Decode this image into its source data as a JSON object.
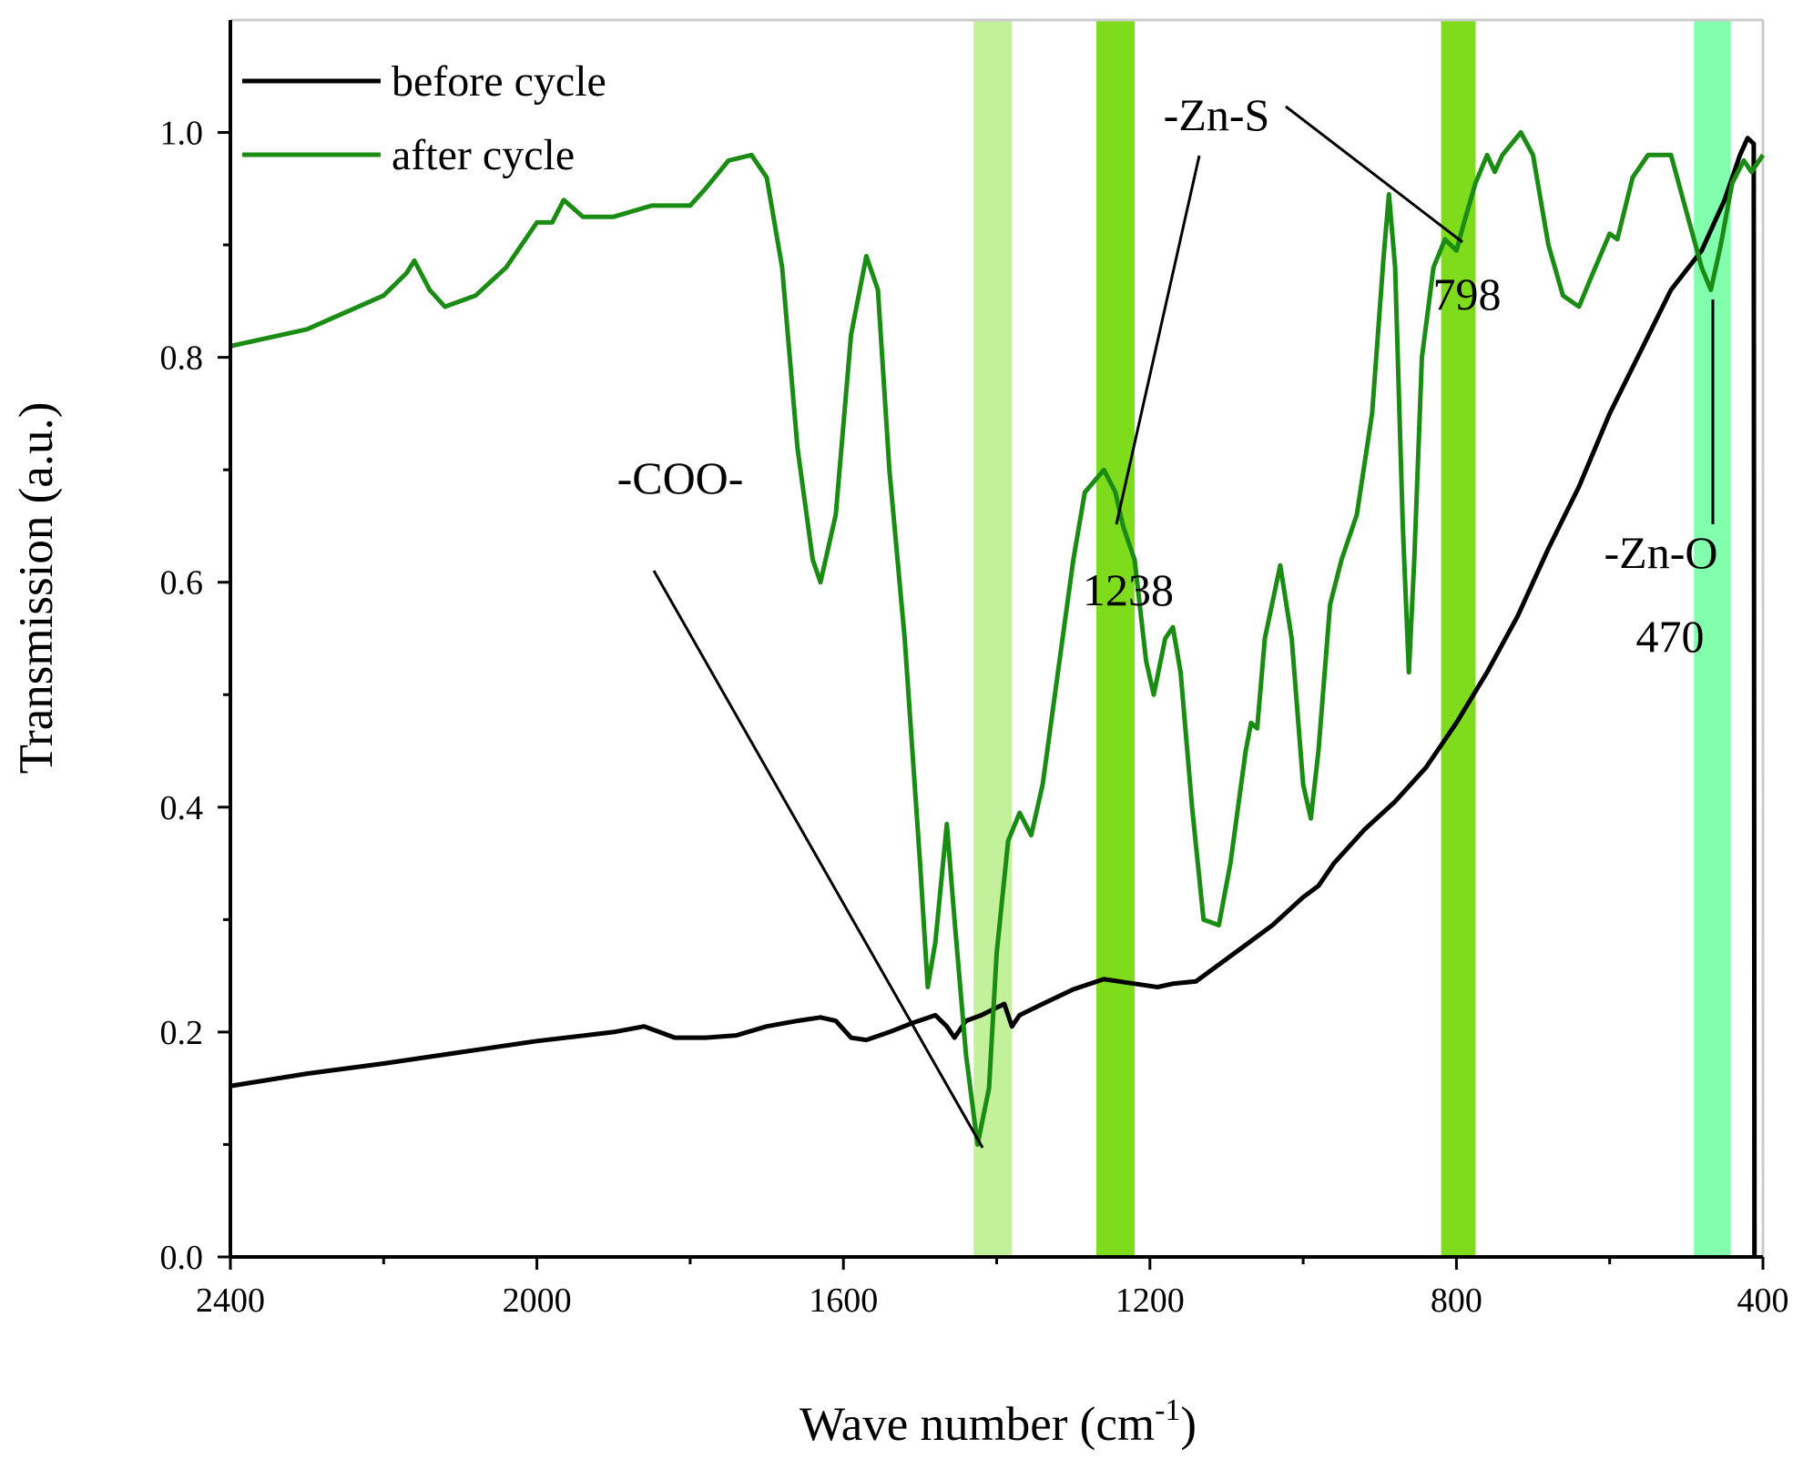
{
  "chart_data": {
    "type": "line",
    "xlabel": {
      "text": "Wave number (cm",
      "sup": "-1",
      "tail": ")"
    },
    "ylabel": "Transmission (a.u.)",
    "xlim": [
      2400,
      400
    ],
    "ylim": [
      0,
      1.1
    ],
    "xticks": [
      2400,
      2000,
      1600,
      1200,
      800,
      400
    ],
    "xminorticks": [
      2200,
      1800,
      1400,
      1000,
      600
    ],
    "yticks": [
      {
        "value": 0,
        "label": "0.0"
      },
      0.2,
      0.4,
      0.6,
      0.8,
      {
        "value": 1,
        "label": "1.0"
      }
    ],
    "yminorticks": [
      0.1,
      0.3,
      0.5,
      0.7,
      0.9
    ],
    "legend": "upper left",
    "bands": [
      {
        "from": 1430,
        "to": 1380,
        "color": "#c3f09a"
      },
      {
        "from": 1270,
        "to": 1220,
        "color": "#7fdc1c"
      },
      {
        "from": 820,
        "to": 775,
        "color": "#7fdc1c"
      },
      {
        "from": 490,
        "to": 442,
        "color": "#82ffad"
      }
    ],
    "annotations": [
      "-COO-",
      "-Zn-S",
      "1238",
      "798",
      "-Zn-O",
      "470"
    ],
    "series": [
      {
        "name": "before cycle",
        "color": "#000000",
        "x": [
          2400,
          2300,
          2200,
          2100,
          2000,
          1900,
          1860,
          1840,
          1820,
          1780,
          1740,
          1700,
          1660,
          1630,
          1610,
          1590,
          1570,
          1540,
          1510,
          1480,
          1465,
          1455,
          1440,
          1420,
          1390,
          1380,
          1370,
          1340,
          1300,
          1260,
          1220,
          1190,
          1170,
          1140,
          1120,
          1080,
          1040,
          1000,
          980,
          960,
          920,
          880,
          840,
          800,
          760,
          720,
          680,
          640,
          600,
          560,
          520,
          480,
          450,
          430,
          420,
          412,
          411
        ],
        "values": [
          0.152,
          0.163,
          0.172,
          0.182,
          0.192,
          0.2,
          0.205,
          0.2,
          0.195,
          0.195,
          0.197,
          0.205,
          0.21,
          0.213,
          0.21,
          0.195,
          0.193,
          0.2,
          0.208,
          0.215,
          0.205,
          0.195,
          0.21,
          0.215,
          0.225,
          0.205,
          0.215,
          0.225,
          0.238,
          0.247,
          0.243,
          0.24,
          0.243,
          0.245,
          0.255,
          0.275,
          0.295,
          0.32,
          0.33,
          0.35,
          0.38,
          0.405,
          0.435,
          0.475,
          0.52,
          0.57,
          0.63,
          0.685,
          0.75,
          0.805,
          0.86,
          0.895,
          0.94,
          0.98,
          0.995,
          0.99,
          0.0
        ]
      },
      {
        "name": "after cycle",
        "color": "#1a8c14",
        "x": [
          2400,
          2300,
          2200,
          2170,
          2160,
          2140,
          2120,
          2080,
          2040,
          2000,
          1980,
          1965,
          1940,
          1900,
          1850,
          1800,
          1780,
          1750,
          1720,
          1700,
          1680,
          1660,
          1640,
          1630,
          1610,
          1590,
          1570,
          1555,
          1540,
          1520,
          1500,
          1490,
          1480,
          1465,
          1455,
          1440,
          1425,
          1410,
          1400,
          1385,
          1370,
          1355,
          1340,
          1320,
          1300,
          1285,
          1260,
          1245,
          1235,
          1220,
          1205,
          1195,
          1180,
          1170,
          1160,
          1145,
          1130,
          1110,
          1095,
          1075,
          1068,
          1060,
          1050,
          1030,
          1015,
          1000,
          990,
          980,
          965,
          950,
          930,
          910,
          895,
          888,
          880,
          870,
          862,
          855,
          845,
          830,
          815,
          800,
          790,
          775,
          760,
          750,
          740,
          716,
          700,
          680,
          661,
          640,
          625,
          600,
          590,
          570,
          550,
          520,
          500,
          480,
          468,
          455,
          440,
          425,
          415,
          400
        ],
        "values": [
          0.81,
          0.825,
          0.855,
          0.875,
          0.886,
          0.86,
          0.845,
          0.855,
          0.88,
          0.92,
          0.92,
          0.94,
          0.925,
          0.925,
          0.935,
          0.935,
          0.95,
          0.975,
          0.98,
          0.96,
          0.88,
          0.72,
          0.62,
          0.6,
          0.66,
          0.82,
          0.89,
          0.86,
          0.7,
          0.55,
          0.35,
          0.24,
          0.28,
          0.385,
          0.3,
          0.18,
          0.1,
          0.15,
          0.27,
          0.37,
          0.395,
          0.375,
          0.42,
          0.52,
          0.62,
          0.68,
          0.7,
          0.68,
          0.65,
          0.62,
          0.53,
          0.5,
          0.55,
          0.56,
          0.52,
          0.4,
          0.3,
          0.295,
          0.35,
          0.45,
          0.475,
          0.47,
          0.55,
          0.615,
          0.55,
          0.42,
          0.39,
          0.45,
          0.58,
          0.62,
          0.66,
          0.75,
          0.89,
          0.945,
          0.88,
          0.65,
          0.52,
          0.62,
          0.8,
          0.88,
          0.905,
          0.895,
          0.92,
          0.955,
          0.98,
          0.965,
          0.98,
          1.0,
          0.98,
          0.9,
          0.855,
          0.845,
          0.87,
          0.91,
          0.905,
          0.96,
          0.98,
          0.98,
          0.93,
          0.88,
          0.86,
          0.9,
          0.955,
          0.975,
          0.965,
          0.98
        ]
      }
    ]
  }
}
